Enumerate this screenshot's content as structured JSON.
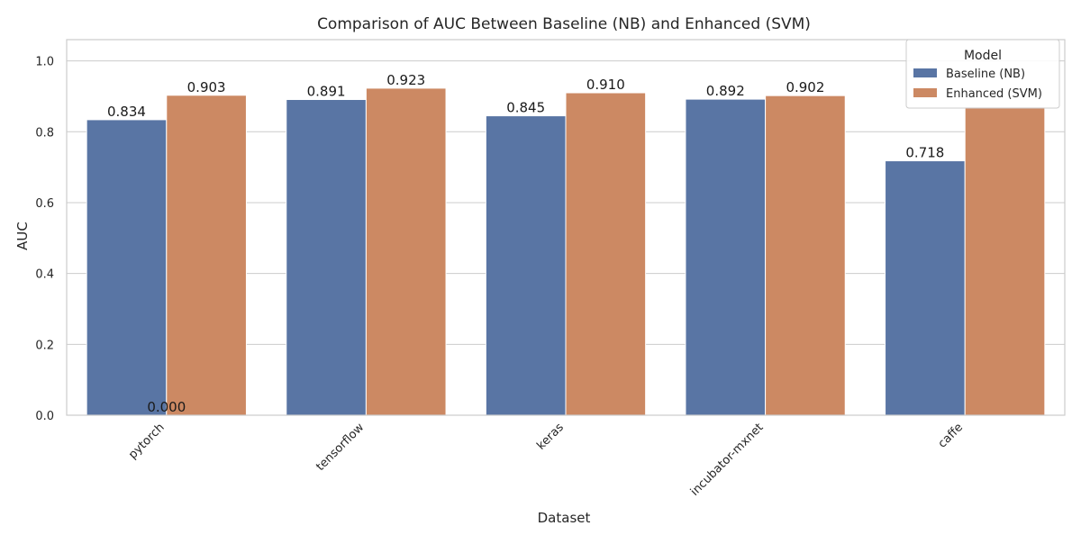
{
  "chart_data": {
    "type": "bar",
    "title": "Comparison of AUC Between Baseline (NB) and Enhanced (SVM)",
    "xlabel": "Dataset",
    "ylabel": "AUC",
    "ylim": [
      0,
      1.06
    ],
    "yticks": [
      0.0,
      0.2,
      0.4,
      0.6,
      0.8,
      1.0
    ],
    "ytick_labels": [
      "0.0",
      "0.2",
      "0.4",
      "0.6",
      "0.8",
      "1.0"
    ],
    "categories": [
      "pytorch",
      "tensorflow",
      "keras",
      "incubator-mxnet",
      "caffe"
    ],
    "series": [
      {
        "name": "Baseline (NB)",
        "color": "#5975a4",
        "values": [
          0.834,
          0.891,
          0.845,
          0.892,
          0.718
        ]
      },
      {
        "name": "Enhanced (SVM)",
        "color": "#cc8963",
        "values": [
          0.903,
          0.923,
          0.91,
          0.902,
          0.87
        ]
      }
    ],
    "data_labels": [
      {
        "category": "pytorch",
        "series": "Baseline (NB)",
        "text": "0.834"
      },
      {
        "category": "pytorch",
        "series": "Enhanced (SVM)",
        "text": "0.903"
      },
      {
        "category": "tensorflow",
        "series": "Baseline (NB)",
        "text": "0.891"
      },
      {
        "category": "tensorflow",
        "series": "Enhanced (SVM)",
        "text": "0.923"
      },
      {
        "category": "keras",
        "series": "Baseline (NB)",
        "text": "0.845"
      },
      {
        "category": "keras",
        "series": "Enhanced (SVM)",
        "text": "0.910"
      },
      {
        "category": "incubator-mxnet",
        "series": "Baseline (NB)",
        "text": "0.892"
      },
      {
        "category": "incubator-mxnet",
        "series": "Enhanced (SVM)",
        "text": "0.902"
      },
      {
        "category": "caffe",
        "series": "Baseline (NB)",
        "text": "0.718"
      }
    ],
    "stray_label": {
      "text": "0.000",
      "value": 0.0
    },
    "legend": {
      "title": "Model",
      "placement": "top-right",
      "entries": [
        "Baseline (NB)",
        "Enhanced (SVM)"
      ]
    },
    "grid": "horizontal"
  }
}
